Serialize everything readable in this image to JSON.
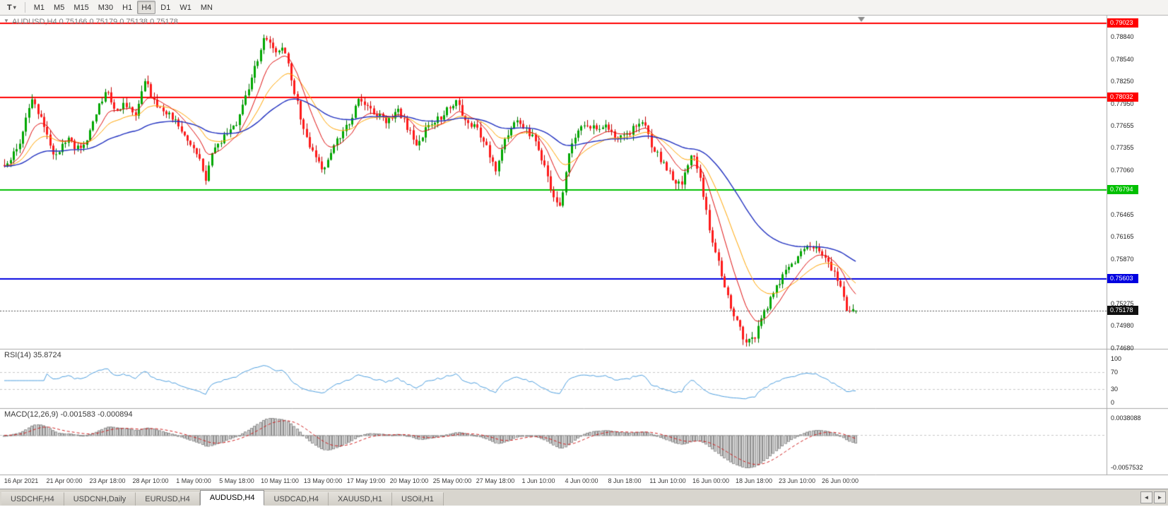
{
  "toolbar": {
    "template_button": "T",
    "dropdown_caret": "▾",
    "timeframes": [
      "M1",
      "M5",
      "M15",
      "M30",
      "H1",
      "H4",
      "D1",
      "W1",
      "MN"
    ],
    "active_timeframe": "H4"
  },
  "chart": {
    "title": "AUDUSD,H4 0.75166 0.75179 0.75138 0.75178",
    "symbol": "AUDUSD",
    "timeframe": "H4",
    "quick_trade_icon": "▼",
    "ohlc": {
      "open": 0.75166,
      "high": 0.75179,
      "low": 0.75138,
      "close": 0.75178
    },
    "colors": {
      "bull_fill": "#00A800",
      "bull_border": "#007200",
      "bear_fill": "#FF1A1A",
      "bear_border": "#C00000",
      "ma_fast": "#E01010",
      "ma_mid": "#FFA500",
      "ma_slow": "#2030C0",
      "current_price_line": "#555555",
      "rsi_line": "#4FA0E0",
      "macd_hist_fill": "#D2D2D2",
      "macd_hist_border": "#909090",
      "macd_signal": "#D02020",
      "level_dash": "#C8C8C8",
      "divider": "#A9A9A9",
      "shift_marker": "#8C8C8C"
    },
    "h_lines": [
      {
        "price": 0.79023,
        "label": "0.79023",
        "color": "#FF0000"
      },
      {
        "price": 0.78032,
        "label": "0.78032",
        "color": "#FF0000"
      },
      {
        "price": 0.76794,
        "label": "0.76794",
        "color": "#00C000"
      },
      {
        "price": 0.75603,
        "label": "0.75603",
        "color": "#0000E0"
      }
    ],
    "current_price": {
      "value": 0.75178,
      "label": "0.75178",
      "bg": "#101010"
    },
    "y_axis": {
      "top_price": 0.79127,
      "bottom_price": 0.74666,
      "ticks": [
        "0.78840",
        "0.78540",
        "0.78250",
        "0.77950",
        "0.77655",
        "0.77355",
        "0.77060",
        "0.76760",
        "0.76465",
        "0.76165",
        "0.75870",
        "0.75570",
        "0.75275",
        "0.74980",
        "0.74680"
      ]
    },
    "x_labels": [
      "16 Apr 2021",
      "21 Apr 00:00",
      "23 Apr 18:00",
      "28 Apr 10:00",
      "1 May 00:00",
      "5 May 18:00",
      "10 May 11:00",
      "13 May 00:00",
      "17 May 19:00",
      "20 May 10:00",
      "25 May 00:00",
      "27 May 18:00",
      "1 Jun 10:00",
      "4 Jun 00:00",
      "8 Jun 18:00",
      "11 Jun 10:00",
      "16 Jun 00:00",
      "18 Jun 18:00",
      "23 Jun 10:00",
      "26 Jun 00:00"
    ],
    "candle_count": 280,
    "price_path": [
      [
        0,
        0.771
      ],
      [
        0.017,
        0.7742
      ],
      [
        0.033,
        0.7802
      ],
      [
        0.045,
        0.7768
      ],
      [
        0.058,
        0.7722
      ],
      [
        0.074,
        0.7746
      ],
      [
        0.091,
        0.773
      ],
      [
        0.12,
        0.7818
      ],
      [
        0.13,
        0.7782
      ],
      [
        0.14,
        0.7795
      ],
      [
        0.153,
        0.7778
      ],
      [
        0.165,
        0.7825
      ],
      [
        0.176,
        0.7798
      ],
      [
        0.19,
        0.7782
      ],
      [
        0.202,
        0.777
      ],
      [
        0.215,
        0.7744
      ],
      [
        0.227,
        0.7726
      ],
      [
        0.236,
        0.7692
      ],
      [
        0.245,
        0.773
      ],
      [
        0.259,
        0.7752
      ],
      [
        0.27,
        0.7762
      ],
      [
        0.283,
        0.7802
      ],
      [
        0.295,
        0.7845
      ],
      [
        0.307,
        0.7888
      ],
      [
        0.318,
        0.7862
      ],
      [
        0.328,
        0.787
      ],
      [
        0.339,
        0.7818
      ],
      [
        0.351,
        0.7762
      ],
      [
        0.364,
        0.7722
      ],
      [
        0.374,
        0.7706
      ],
      [
        0.383,
        0.7728
      ],
      [
        0.394,
        0.7752
      ],
      [
        0.406,
        0.7772
      ],
      [
        0.417,
        0.78
      ],
      [
        0.427,
        0.7792
      ],
      [
        0.439,
        0.7778
      ],
      [
        0.45,
        0.777
      ],
      [
        0.462,
        0.7786
      ],
      [
        0.474,
        0.7762
      ],
      [
        0.485,
        0.774
      ],
      [
        0.497,
        0.7766
      ],
      [
        0.508,
        0.7772
      ],
      [
        0.52,
        0.7786
      ],
      [
        0.53,
        0.7796
      ],
      [
        0.541,
        0.7776
      ],
      [
        0.554,
        0.7762
      ],
      [
        0.566,
        0.7736
      ],
      [
        0.578,
        0.7706
      ],
      [
        0.588,
        0.7746
      ],
      [
        0.599,
        0.777
      ],
      [
        0.609,
        0.7764
      ],
      [
        0.621,
        0.775
      ],
      [
        0.632,
        0.772
      ],
      [
        0.644,
        0.7672
      ],
      [
        0.652,
        0.7652
      ],
      [
        0.662,
        0.7722
      ],
      [
        0.672,
        0.7756
      ],
      [
        0.683,
        0.777
      ],
      [
        0.695,
        0.776
      ],
      [
        0.707,
        0.7766
      ],
      [
        0.718,
        0.7746
      ],
      [
        0.73,
        0.7752
      ],
      [
        0.742,
        0.7766
      ],
      [
        0.751,
        0.7776
      ],
      [
        0.761,
        0.7736
      ],
      [
        0.773,
        0.7716
      ],
      [
        0.784,
        0.7696
      ],
      [
        0.796,
        0.7686
      ],
      [
        0.807,
        0.773
      ],
      [
        0.817,
        0.77
      ],
      [
        0.827,
        0.763
      ],
      [
        0.837,
        0.7588
      ],
      [
        0.848,
        0.754
      ],
      [
        0.859,
        0.7506
      ],
      [
        0.87,
        0.7476
      ],
      [
        0.881,
        0.7482
      ],
      [
        0.892,
        0.7514
      ],
      [
        0.903,
        0.754
      ],
      [
        0.914,
        0.7564
      ],
      [
        0.925,
        0.758
      ],
      [
        0.936,
        0.7594
      ],
      [
        0.947,
        0.7604
      ],
      [
        0.958,
        0.7596
      ],
      [
        0.969,
        0.758
      ],
      [
        0.98,
        0.7556
      ],
      [
        0.99,
        0.7516
      ],
      [
        1,
        0.7518
      ]
    ]
  },
  "rsi": {
    "label": "RSI(14) 35.8724",
    "value": 35.8724,
    "period": 14,
    "axis_ticks": [
      100,
      70,
      30,
      0
    ],
    "upper_level": 70,
    "lower_level": 30
  },
  "macd": {
    "label": "MACD(12,26,9) -0.001583 -0.000894",
    "macd_value": -0.001583,
    "signal_value": -0.000894,
    "axis_top_label": "0.0038088",
    "axis_bottom_label": "-0.0057532"
  },
  "tabs": {
    "items": [
      "USDCHF,H4",
      "USDCNH,Daily",
      "EURUSD,H4",
      "AUDUSD,H4",
      "USDCAD,H4",
      "XAUUSD,H1",
      "USOil,H1"
    ],
    "active": "AUDUSD,H4",
    "scroll_left_icon": "◄",
    "scroll_right_icon": "►"
  }
}
